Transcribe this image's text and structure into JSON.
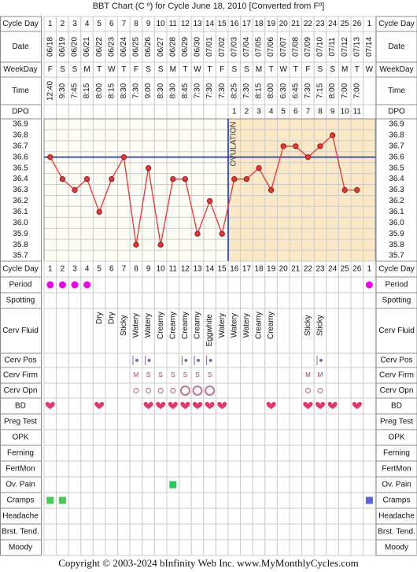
{
  "title": "BBT Chart (C º) for Cycle June 18, 2010  [Converted from Fº]",
  "footer": "Copyright © 2003-2024 bInfinity Web Inc.    www.MyMonthlyCycles.com",
  "labels": {
    "cycle_day": "Cycle Day",
    "date": "Date",
    "weekday": "WeekDay",
    "time": "Time",
    "dpo": "DPO",
    "period": "Period",
    "spotting": "Spotting",
    "cerv_fluid": "Cerv Fluid",
    "cerv_pos": "Cerv Pos",
    "cerv_firm": "Cerv Firm",
    "cerv_opn": "Cerv Opn",
    "bd": "BD",
    "preg_test": "Preg Test",
    "opk": "OPK",
    "ferning": "Ferning",
    "fertmon": "FertMon",
    "ov_pain": "Ov. Pain",
    "cramps": "Cramps",
    "headache": "Headache",
    "brst_tend": "Brst. Tend.",
    "moody": "Moody"
  },
  "colors": {
    "grid": "#cccccc",
    "border": "#888888",
    "pre_ov_bg": "#fdfdf3",
    "post_ov_bg": "#fbe9c6",
    "line": "#ee3333",
    "cover_line": "#1133dd",
    "ovulation_line": "#1133dd",
    "period": "#ee00ee",
    "bd_heart": "#e8336b",
    "ov_pain": "#22cc55",
    "cramps_green": "#44cc55",
    "cramps_blue": "#5566dd"
  },
  "chart_data": {
    "type": "line",
    "title": "BBT Chart (C º) for Cycle June 18, 2010  [Converted from Fº]",
    "xlabel": "Cycle Day",
    "ylabel": "",
    "ylim": [
      35.7,
      36.9
    ],
    "y_ticks": [
      "36.9",
      "36.8",
      "36.7",
      "36.6",
      "36.5",
      "36.4",
      "36.3",
      "36.2",
      "36.1",
      "36.0",
      "35.9",
      "35.8",
      "35.7"
    ],
    "grid": true,
    "cycle_days": [
      "1",
      "2",
      "3",
      "4",
      "5",
      "6",
      "7",
      "8",
      "9",
      "10",
      "11",
      "12",
      "13",
      "14",
      "15",
      "16",
      "17",
      "18",
      "19",
      "20",
      "21",
      "22",
      "23",
      "24",
      "25",
      "26",
      "1"
    ],
    "dates": [
      "06/18",
      "06/19",
      "06/20",
      "06/21",
      "06/22",
      "06/23",
      "06/24",
      "06/25",
      "06/26",
      "06/27",
      "06/28",
      "06/29",
      "06/30",
      "07/01",
      "07/02",
      "07/03",
      "07/04",
      "07/05",
      "07/06",
      "07/07",
      "07/08",
      "07/09",
      "07/10",
      "07/11",
      "07/12",
      "07/13",
      "07/14"
    ],
    "weekdays": [
      "F",
      "S",
      "S",
      "M",
      "T",
      "W",
      "T",
      "F",
      "S",
      "S",
      "M",
      "T",
      "W",
      "T",
      "F",
      "S",
      "S",
      "M",
      "T",
      "W",
      "T",
      "F",
      "S",
      "S",
      "M",
      "T",
      "W"
    ],
    "times": [
      "12:40",
      "9:30",
      "7:45",
      "8:15",
      "8:00",
      "8:15",
      "8:30",
      "7:30",
      "9:00",
      "8:30",
      "8:30",
      "8:45",
      "7:30",
      "7:30",
      "7:30",
      "8:25",
      "7:30",
      "8:15",
      "8:00",
      "6:30",
      "6:45",
      "7:30",
      "7:15",
      "8:00",
      "7:00",
      "7:00",
      ""
    ],
    "dpo": [
      "",
      "",
      "",
      "",
      "",
      "",
      "",
      "",
      "",
      "",
      "",
      "",
      "",
      "",
      "",
      "1",
      "2",
      "3",
      "4",
      "5",
      "6",
      "7",
      "8",
      "9",
      "10",
      "11",
      ""
    ],
    "temperatures": [
      36.6,
      36.4,
      36.3,
      36.4,
      36.1,
      36.4,
      36.6,
      35.8,
      36.5,
      35.8,
      36.4,
      36.4,
      35.9,
      36.2,
      35.9,
      36.4,
      36.4,
      36.5,
      36.3,
      36.7,
      36.7,
      36.6,
      36.7,
      36.8,
      36.3,
      36.3,
      null
    ],
    "cover_line": 36.6,
    "ovulation_after_day": 15,
    "ovulation_label": "OVULATION",
    "series": [
      {
        "name": "",
        "values": [
          36.6,
          36.4,
          36.3,
          36.4,
          36.1,
          36.4,
          36.6,
          35.8,
          36.5,
          35.8,
          36.4,
          36.4,
          35.9,
          36.2,
          35.9,
          36.4,
          36.4,
          36.5,
          36.3,
          36.7,
          36.7,
          36.6,
          36.7,
          36.8,
          36.3,
          36.3,
          null
        ]
      }
    ],
    "period": [
      1,
      1,
      1,
      1,
      0,
      0,
      0,
      0,
      0,
      0,
      0,
      0,
      0,
      0,
      0,
      0,
      0,
      0,
      0,
      0,
      0,
      0,
      0,
      0,
      0,
      0,
      1
    ],
    "cerv_fluid": [
      "",
      "",
      "",
      "",
      "Dry",
      "Dry",
      "Sticky",
      "Watery",
      "Watery",
      "Creamy",
      "Creamy",
      "Creamy",
      "Creamy",
      "Eggwhite",
      "Watery",
      "Watery",
      "Watery",
      "Creamy",
      "Creamy",
      "",
      "",
      "Sticky",
      "Sticky",
      "",
      "",
      "",
      ""
    ],
    "cerv_pos": [
      "",
      "",
      "",
      "",
      "",
      "",
      "",
      "l",
      "l",
      "",
      "",
      "l",
      "l",
      "l",
      "",
      "",
      "",
      "",
      "",
      "",
      "",
      "",
      "l",
      "",
      "",
      "",
      ""
    ],
    "cerv_firm": [
      "",
      "",
      "",
      "",
      "",
      "",
      "",
      "M",
      "S",
      "S",
      "S",
      "S",
      "S",
      "S",
      "",
      "",
      "",
      "",
      "",
      "",
      "",
      "M",
      "M",
      "",
      "",
      "",
      ""
    ],
    "cerv_opn": [
      "",
      "",
      "",
      "",
      "",
      "",
      "",
      "s",
      "s",
      "s",
      "s",
      "l",
      "l",
      "l",
      "",
      "",
      "",
      "",
      "",
      "",
      "",
      "s",
      "s",
      "",
      "",
      "",
      ""
    ],
    "bd": [
      1,
      0,
      0,
      0,
      1,
      0,
      0,
      0,
      1,
      1,
      1,
      1,
      1,
      1,
      1,
      0,
      0,
      0,
      1,
      0,
      0,
      1,
      1,
      1,
      0,
      1,
      0
    ],
    "ov_pain": [
      0,
      0,
      0,
      0,
      0,
      0,
      0,
      0,
      0,
      0,
      1,
      0,
      0,
      0,
      0,
      0,
      0,
      0,
      0,
      0,
      0,
      0,
      0,
      0,
      0,
      0,
      0
    ],
    "cramps": [
      "g",
      "g",
      "",
      "",
      "",
      "",
      "",
      "",
      "",
      "",
      "",
      "",
      "",
      "",
      "",
      "",
      "",
      "",
      "",
      "",
      "",
      "",
      "",
      "",
      "",
      "",
      "b"
    ]
  }
}
